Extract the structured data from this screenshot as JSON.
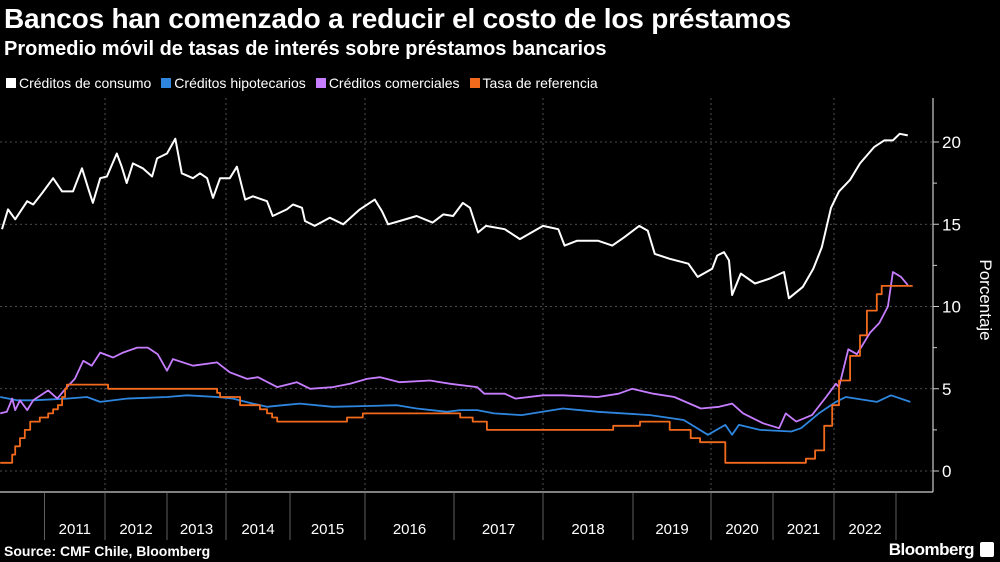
{
  "header": {
    "title": "Bancos han comenzado a reducir el costo de los préstamos",
    "subtitle": "Promedio móvil de tasas de interés sobre préstamos bancarios"
  },
  "footer": {
    "source": "Source: CMF Chile, Bloomberg",
    "brand": "Bloomberg"
  },
  "chart_data": {
    "type": "line",
    "title": "Bancos han comenzado a reducir el costo de los préstamos",
    "subtitle": "Promedio móvil de tasas de interés sobre préstamos bancarios",
    "xlabel": "",
    "ylabel": "Porcentaje",
    "x_tick_labels": [
      "2011",
      "2012",
      "2013",
      "2014",
      "2015",
      "2016",
      "2017",
      "2018",
      "2019",
      "2020",
      "2021",
      "2022"
    ],
    "y_ticks": [
      0,
      5,
      10,
      15,
      20
    ],
    "ylim": [
      -2,
      22.5
    ],
    "grid": true,
    "y_axis_side": "right",
    "legend_position": "top-left",
    "series": [
      {
        "name": "Créditos de consumo",
        "color": "#ffffff",
        "step": false,
        "points": [
          [
            2010.29,
            14.7
          ],
          [
            2010.39,
            15.9
          ],
          [
            2010.51,
            15.3
          ],
          [
            2010.71,
            16.4
          ],
          [
            2010.81,
            16.2
          ],
          [
            2010.96,
            16.9
          ],
          [
            2011.14,
            17.8
          ],
          [
            2011.29,
            17.0
          ],
          [
            2011.47,
            17.0
          ],
          [
            2011.62,
            18.4
          ],
          [
            2011.72,
            17.2
          ],
          [
            2011.8,
            16.3
          ],
          [
            2011.92,
            17.8
          ],
          [
            2012.03,
            17.9
          ],
          [
            2012.19,
            19.3
          ],
          [
            2012.27,
            18.5
          ],
          [
            2012.35,
            17.5
          ],
          [
            2012.45,
            18.7
          ],
          [
            2012.61,
            18.4
          ],
          [
            2012.76,
            17.9
          ],
          [
            2012.84,
            19.0
          ],
          [
            2013.0,
            19.3
          ],
          [
            2013.14,
            20.2
          ],
          [
            2013.25,
            18.1
          ],
          [
            2013.44,
            17.8
          ],
          [
            2013.56,
            18.1
          ],
          [
            2013.68,
            17.8
          ],
          [
            2013.78,
            16.6
          ],
          [
            2013.9,
            17.8
          ],
          [
            2014.06,
            17.8
          ],
          [
            2014.17,
            18.5
          ],
          [
            2014.3,
            16.5
          ],
          [
            2014.42,
            16.7
          ],
          [
            2014.64,
            16.4
          ],
          [
            2014.73,
            15.5
          ],
          [
            2014.95,
            15.9
          ],
          [
            2015.04,
            16.2
          ],
          [
            2015.16,
            16.0
          ],
          [
            2015.2,
            15.2
          ],
          [
            2015.33,
            14.9
          ],
          [
            2015.53,
            15.4
          ],
          [
            2015.71,
            15.0
          ],
          [
            2015.93,
            15.9
          ],
          [
            2016.11,
            16.5
          ],
          [
            2016.19,
            15.8
          ],
          [
            2016.26,
            15.0
          ],
          [
            2016.39,
            15.2
          ],
          [
            2016.58,
            15.5
          ],
          [
            2016.76,
            15.1
          ],
          [
            2016.88,
            15.6
          ],
          [
            2016.99,
            15.5
          ],
          [
            2017.1,
            16.3
          ],
          [
            2017.18,
            16.0
          ],
          [
            2017.27,
            14.5
          ],
          [
            2017.36,
            14.9
          ],
          [
            2017.57,
            14.7
          ],
          [
            2017.74,
            14.1
          ],
          [
            2018.0,
            14.9
          ],
          [
            2018.17,
            14.7
          ],
          [
            2018.24,
            13.7
          ],
          [
            2018.38,
            14.0
          ],
          [
            2018.61,
            14.0
          ],
          [
            2018.77,
            13.7
          ],
          [
            2018.9,
            14.2
          ],
          [
            2019.08,
            14.9
          ],
          [
            2019.19,
            14.6
          ],
          [
            2019.28,
            13.2
          ],
          [
            2019.47,
            12.9
          ],
          [
            2019.71,
            12.6
          ],
          [
            2019.83,
            11.8
          ],
          [
            2020.02,
            12.3
          ],
          [
            2020.1,
            13.1
          ],
          [
            2020.21,
            13.3
          ],
          [
            2020.29,
            12.8
          ],
          [
            2020.34,
            10.7
          ],
          [
            2020.48,
            12.0
          ],
          [
            2020.71,
            11.4
          ],
          [
            2020.95,
            11.7
          ],
          [
            2021.18,
            12.1
          ],
          [
            2021.26,
            10.5
          ],
          [
            2021.49,
            11.2
          ],
          [
            2021.66,
            12.3
          ],
          [
            2021.8,
            13.6
          ],
          [
            2021.95,
            16.0
          ],
          [
            2022.08,
            17.0
          ],
          [
            2022.26,
            17.7
          ],
          [
            2022.42,
            18.7
          ],
          [
            2022.65,
            19.7
          ],
          [
            2022.81,
            20.1
          ],
          [
            2022.95,
            20.1
          ],
          [
            2023.06,
            20.5
          ],
          [
            2023.19,
            20.4
          ]
        ]
      },
      {
        "name": "Créditos hipotecarios",
        "color": "#2e86de",
        "step": false,
        "points": [
          [
            2010.26,
            4.5
          ],
          [
            2010.54,
            4.3
          ],
          [
            2010.81,
            4.3
          ],
          [
            2011.37,
            4.4
          ],
          [
            2011.7,
            4.5
          ],
          [
            2011.92,
            4.2
          ],
          [
            2012.35,
            4.4
          ],
          [
            2013.0,
            4.5
          ],
          [
            2013.34,
            4.6
          ],
          [
            2013.85,
            4.5
          ],
          [
            2014.11,
            4.4
          ],
          [
            2014.42,
            4.1
          ],
          [
            2014.64,
            3.9
          ],
          [
            2014.89,
            4.0
          ],
          [
            2015.13,
            4.1
          ],
          [
            2015.57,
            3.9
          ],
          [
            2016.02,
            3.95
          ],
          [
            2016.36,
            4.0
          ],
          [
            2016.58,
            3.8
          ],
          [
            2016.92,
            3.6
          ],
          [
            2017.07,
            3.7
          ],
          [
            2017.26,
            3.7
          ],
          [
            2017.45,
            3.5
          ],
          [
            2017.76,
            3.4
          ],
          [
            2018.22,
            3.8
          ],
          [
            2018.61,
            3.6
          ],
          [
            2019.22,
            3.4
          ],
          [
            2019.65,
            3.1
          ],
          [
            2019.96,
            2.2
          ],
          [
            2020.23,
            2.8
          ],
          [
            2020.34,
            2.2
          ],
          [
            2020.45,
            2.8
          ],
          [
            2020.79,
            2.5
          ],
          [
            2021.3,
            2.4
          ],
          [
            2021.46,
            2.6
          ],
          [
            2021.75,
            3.5
          ],
          [
            2022.03,
            4.2
          ],
          [
            2022.19,
            4.5
          ],
          [
            2022.69,
            4.2
          ],
          [
            2022.92,
            4.6
          ],
          [
            2023.23,
            4.2
          ]
        ]
      },
      {
        "name": "Créditos comerciales",
        "color": "#c77dff",
        "step": false,
        "points": [
          [
            2010.26,
            3.5
          ],
          [
            2010.37,
            3.6
          ],
          [
            2010.46,
            4.4
          ],
          [
            2010.51,
            3.7
          ],
          [
            2010.59,
            4.3
          ],
          [
            2010.71,
            3.7
          ],
          [
            2010.81,
            4.3
          ],
          [
            2011.06,
            4.9
          ],
          [
            2011.21,
            4.4
          ],
          [
            2011.37,
            5.1
          ],
          [
            2011.5,
            5.6
          ],
          [
            2011.64,
            6.7
          ],
          [
            2011.78,
            6.4
          ],
          [
            2011.92,
            7.2
          ],
          [
            2012.13,
            6.9
          ],
          [
            2012.29,
            7.2
          ],
          [
            2012.52,
            7.5
          ],
          [
            2012.69,
            7.5
          ],
          [
            2012.85,
            7.1
          ],
          [
            2013.0,
            6.1
          ],
          [
            2013.1,
            6.8
          ],
          [
            2013.44,
            6.4
          ],
          [
            2013.85,
            6.6
          ],
          [
            2014.06,
            6.0
          ],
          [
            2014.33,
            5.6
          ],
          [
            2014.5,
            5.7
          ],
          [
            2014.8,
            5.1
          ],
          [
            2015.09,
            5.4
          ],
          [
            2015.27,
            5.0
          ],
          [
            2015.57,
            5.1
          ],
          [
            2015.8,
            5.3
          ],
          [
            2016.02,
            5.6
          ],
          [
            2016.17,
            5.7
          ],
          [
            2016.39,
            5.4
          ],
          [
            2016.73,
            5.5
          ],
          [
            2016.96,
            5.3
          ],
          [
            2017.26,
            5.1
          ],
          [
            2017.34,
            4.7
          ],
          [
            2017.57,
            4.7
          ],
          [
            2017.69,
            4.4
          ],
          [
            2018.0,
            4.6
          ],
          [
            2018.22,
            4.6
          ],
          [
            2018.61,
            4.5
          ],
          [
            2018.84,
            4.7
          ],
          [
            2018.99,
            5.0
          ],
          [
            2019.26,
            4.7
          ],
          [
            2019.53,
            4.5
          ],
          [
            2019.87,
            3.8
          ],
          [
            2020.13,
            3.9
          ],
          [
            2020.34,
            4.1
          ],
          [
            2020.52,
            3.5
          ],
          [
            2020.84,
            2.9
          ],
          [
            2021.1,
            2.6
          ],
          [
            2021.21,
            3.5
          ],
          [
            2021.38,
            3.0
          ],
          [
            2021.64,
            3.4
          ],
          [
            2021.87,
            4.5
          ],
          [
            2022.03,
            5.3
          ],
          [
            2022.08,
            5.1
          ],
          [
            2022.23,
            7.4
          ],
          [
            2022.37,
            7.1
          ],
          [
            2022.58,
            8.4
          ],
          [
            2022.73,
            9.0
          ],
          [
            2022.87,
            10.0
          ],
          [
            2022.95,
            12.1
          ],
          [
            2023.08,
            11.8
          ],
          [
            2023.19,
            11.3
          ]
        ]
      },
      {
        "name": "Tasa de referencia",
        "color": "#f26b1d",
        "step": true,
        "points": [
          [
            2010.26,
            0.5
          ],
          [
            2010.46,
            1.0
          ],
          [
            2010.51,
            1.5
          ],
          [
            2010.59,
            2.0
          ],
          [
            2010.67,
            2.5
          ],
          [
            2010.76,
            3.0
          ],
          [
            2010.92,
            3.25
          ],
          [
            2011.06,
            3.5
          ],
          [
            2011.14,
            3.75
          ],
          [
            2011.22,
            4.0
          ],
          [
            2011.29,
            4.5
          ],
          [
            2011.34,
            5.0
          ],
          [
            2011.37,
            5.25
          ],
          [
            2012.05,
            5.0
          ],
          [
            2013.85,
            4.75
          ],
          [
            2013.9,
            4.5
          ],
          [
            2014.22,
            4.0
          ],
          [
            2014.53,
            3.75
          ],
          [
            2014.64,
            3.5
          ],
          [
            2014.72,
            3.25
          ],
          [
            2014.8,
            3.0
          ],
          [
            2015.76,
            3.25
          ],
          [
            2015.97,
            3.5
          ],
          [
            2017.07,
            3.25
          ],
          [
            2017.21,
            3.0
          ],
          [
            2017.37,
            2.5
          ],
          [
            2018.78,
            2.75
          ],
          [
            2019.09,
            3.0
          ],
          [
            2019.47,
            2.5
          ],
          [
            2019.74,
            2.0
          ],
          [
            2019.86,
            1.75
          ],
          [
            2020.23,
            0.5
          ],
          [
            2021.54,
            0.75
          ],
          [
            2021.69,
            1.25
          ],
          [
            2021.84,
            2.75
          ],
          [
            2021.97,
            4.0
          ],
          [
            2022.08,
            5.5
          ],
          [
            2022.26,
            7.0
          ],
          [
            2022.42,
            8.25
          ],
          [
            2022.53,
            9.75
          ],
          [
            2022.69,
            10.75
          ],
          [
            2022.77,
            11.25
          ],
          [
            2023.27,
            11.25
          ]
        ]
      }
    ]
  }
}
